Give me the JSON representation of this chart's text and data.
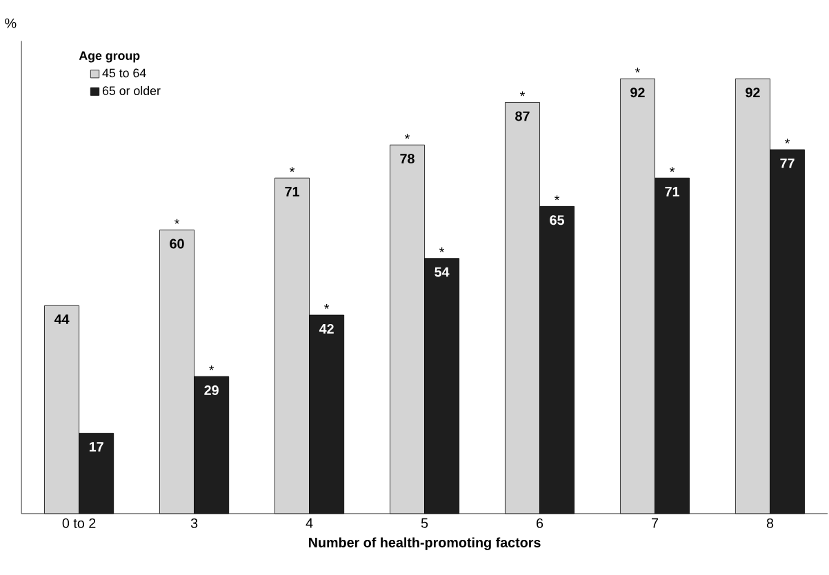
{
  "chart_data": {
    "type": "bar",
    "xlabel": "Number of health-promoting factors",
    "ylabel": "%",
    "legend_title": "Age group",
    "legend": "top left",
    "tick_labels": "x",
    "data_labels": true,
    "ylim": [
      0,
      100
    ],
    "categories": [
      "0 to 2",
      "3",
      "4",
      "5",
      "6",
      "7",
      "8"
    ],
    "series": [
      {
        "name": "45 to 64",
        "color": "#d4d4d4",
        "values": [
          44,
          60,
          71,
          78,
          87,
          92,
          92
        ]
      },
      {
        "name": "65 or older",
        "color": "#1e1e1e",
        "values": [
          17,
          29,
          42,
          54,
          65,
          71,
          77
        ]
      }
    ],
    "annotations": [
      {
        "text": "*",
        "x": "3",
        "y": 60
      },
      {
        "text": "*",
        "x": "4",
        "y": 71
      },
      {
        "text": "*",
        "x": "5",
        "y": 78
      },
      {
        "text": "*",
        "x": "6",
        "y": 87
      },
      {
        "text": "*",
        "x": "7",
        "y": 92
      },
      {
        "text": "*",
        "x": "3",
        "y": 29
      },
      {
        "text": "*",
        "x": "4",
        "y": 42
      },
      {
        "text": "*",
        "x": "5",
        "y": 54
      },
      {
        "text": "*",
        "x": "6",
        "y": 65
      },
      {
        "text": "*",
        "x": "7",
        "y": 71
      },
      {
        "text": "*",
        "x": "8",
        "y": 77
      }
    ]
  }
}
